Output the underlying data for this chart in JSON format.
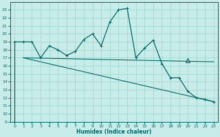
{
  "xlabel": "Humidex (Indice chaleur)",
  "bg_color": "#c8ece8",
  "grid_color": "#a0d8d0",
  "line_color": "#006868",
  "xlim": [
    -0.5,
    23.5
  ],
  "ylim": [
    9,
    24
  ],
  "xticks": [
    0,
    1,
    2,
    3,
    4,
    5,
    6,
    7,
    8,
    9,
    10,
    11,
    12,
    13,
    14,
    15,
    16,
    17,
    18,
    19,
    20,
    21,
    22,
    23
  ],
  "yticks": [
    9,
    10,
    11,
    12,
    13,
    14,
    15,
    16,
    17,
    18,
    19,
    20,
    21,
    22,
    23
  ],
  "main_x": [
    0,
    1,
    2,
    3,
    4,
    5,
    6,
    7,
    8,
    9,
    10,
    11,
    12,
    13,
    14,
    15,
    16,
    17,
    18,
    19,
    20,
    21,
    22,
    23
  ],
  "main_y": [
    19,
    19,
    19,
    17,
    18.5,
    18,
    17.3,
    17.8,
    19.3,
    20,
    18.5,
    21.5,
    23,
    23.2,
    17.0,
    18.2,
    19.2,
    16.3,
    14.5,
    14.5,
    12.8,
    12.0,
    11.8,
    11.5
  ],
  "start_low_y": 9,
  "line1_x": [
    1,
    23
  ],
  "line1_y": [
    17.0,
    16.5
  ],
  "line2_x": [
    1,
    23
  ],
  "line2_y": [
    17.0,
    11.5
  ],
  "tri_marker_x": 20,
  "tri_marker_y": 16.7
}
